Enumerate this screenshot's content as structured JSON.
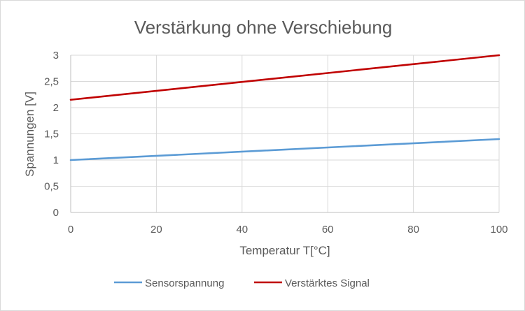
{
  "chart_data": {
    "type": "line",
    "title": "Verstärkung ohne Verschiebung",
    "xlabel": "Temperatur T[°C]",
    "ylabel": "Spannungen [V]",
    "xlim": [
      0,
      100
    ],
    "ylim": [
      0,
      3
    ],
    "x_ticks": [
      0,
      20,
      40,
      60,
      80,
      100
    ],
    "x_tick_labels": [
      "0",
      "20",
      "40",
      "60",
      "80",
      "100"
    ],
    "y_ticks": [
      0,
      0.5,
      1,
      1.5,
      2,
      2.5,
      3
    ],
    "y_tick_labels": [
      "0",
      "0,5",
      "1",
      "1,5",
      "2",
      "2,5",
      "3"
    ],
    "grid": true,
    "legend_position": "bottom",
    "series": [
      {
        "name": "Sensorspannung",
        "color": "#5b9bd5",
        "x": [
          0,
          100
        ],
        "y": [
          1.0,
          1.4
        ]
      },
      {
        "name": "Verstärktes Signal",
        "color": "#c00000",
        "x": [
          0,
          100
        ],
        "y": [
          2.15,
          3.0
        ]
      }
    ]
  }
}
